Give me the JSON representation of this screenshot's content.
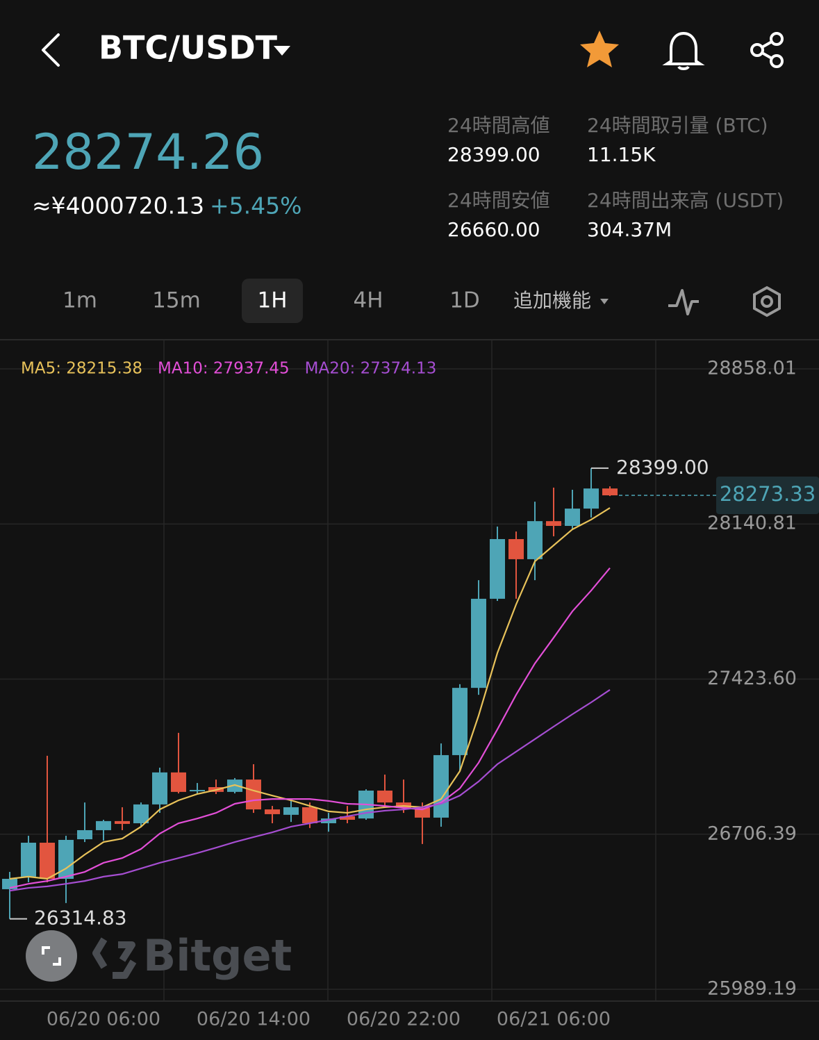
{
  "header": {
    "pair": "BTC/USDT"
  },
  "ticker": {
    "price": "28274.26",
    "cny": "≈¥4000720.13",
    "change": "+5.45%",
    "stats": [
      {
        "label": "24時間高値",
        "value": "28399.00"
      },
      {
        "label": "24時間取引量 (BTC)",
        "value": "11.15K"
      },
      {
        "label": "24時間安値",
        "value": "26660.00"
      },
      {
        "label": "24時間出来高 (USDT)",
        "value": "304.37M"
      }
    ]
  },
  "tabs": [
    "1m",
    "15m",
    "1H",
    "4H",
    "1D",
    "追加機能"
  ],
  "watermark": "Bitget",
  "chart_data": {
    "type": "candlestick",
    "categories": [
      null,
      null,
      null,
      null,
      null,
      "06/20 06:00",
      null,
      null,
      null,
      null,
      null,
      null,
      null,
      "06/20 14:00",
      null,
      null,
      null,
      null,
      null,
      null,
      null,
      "06/20 22:00",
      null,
      null,
      null,
      null,
      null,
      null,
      null,
      "06/21 06:00",
      null,
      null,
      null
    ],
    "open": [
      26452,
      26510,
      26667,
      26500,
      26683,
      26725,
      26767,
      26757,
      26844,
      26992,
      26905,
      26924,
      26902,
      26959,
      26821,
      26796,
      26831,
      26757,
      26789,
      26779,
      26908,
      26853,
      26828,
      26783,
      27072,
      27383,
      27795,
      28071,
      27978,
      28154,
      28132,
      28212,
      28305
    ],
    "high": [
      26532,
      26699,
      27069,
      26699,
      26853,
      26773,
      26831,
      26853,
      27014,
      27175,
      26943,
      26959,
      26966,
      27030,
      26837,
      26869,
      26853,
      26805,
      26837,
      26914,
      26982,
      26959,
      26853,
      27126,
      27400,
      27881,
      28129,
      28106,
      28244,
      28309,
      28299,
      28399,
      28315
    ],
    "low": [
      26314.83,
      26484,
      26484,
      26388,
      26670,
      26677,
      26725,
      26741,
      26805,
      26895,
      26895,
      26892,
      26895,
      26805,
      26757,
      26763,
      26735,
      26718,
      26757,
      26773,
      26837,
      26805,
      26661,
      26741,
      26998,
      27351,
      27785,
      27795,
      27881,
      28084,
      28116,
      28171,
      28270
    ],
    "close": [
      26500,
      26667,
      26500,
      26680,
      26725,
      26767,
      26754,
      26844,
      26992,
      26902,
      26911,
      26902,
      26959,
      26821,
      26799,
      26831,
      26757,
      26779,
      26773,
      26908,
      26853,
      26828,
      26783,
      27072,
      27383,
      27795,
      28071,
      27978,
      28154,
      28132,
      28212,
      28305,
      28273.33
    ],
    "up_color": "#4ea5b6",
    "down_color": "#e2553f",
    "series": [
      {
        "name": "MA5: 28215.38",
        "color": "#e8c25a",
        "values": [
          26500,
          26510,
          26500,
          26548,
          26612,
          26670,
          26686,
          26741,
          26821,
          26863,
          26892,
          26911,
          26934,
          26908,
          26885,
          26863,
          26837,
          26812,
          26805,
          26821,
          26831,
          26837,
          26831,
          26869,
          26998,
          27255,
          27544,
          27769,
          27968,
          28042,
          28116,
          28161,
          28215.38
        ]
      },
      {
        "name": "MA10: 27937.45",
        "color": "#e34fd8",
        "values": [
          26458,
          26477,
          26490,
          26510,
          26532,
          26574,
          26596,
          26638,
          26709,
          26757,
          26779,
          26805,
          26847,
          26863,
          26869,
          26869,
          26869,
          26860,
          26847,
          26844,
          26837,
          26828,
          26821,
          26853,
          26918,
          27037,
          27191,
          27351,
          27496,
          27615,
          27737,
          27833,
          27937.45
        ]
      },
      {
        "name": "MA20: 27374.13",
        "color": "#a64ed2",
        "values": [
          26445,
          26458,
          26465,
          26477,
          26490,
          26510,
          26522,
          26548,
          26574,
          26596,
          26619,
          26644,
          26670,
          26693,
          26715,
          26741,
          26757,
          26773,
          26789,
          26805,
          26815,
          26821,
          26831,
          26847,
          26885,
          26950,
          27030,
          27088,
          27146,
          27204,
          27261,
          27316,
          27374.13
        ]
      }
    ],
    "ylim": [
      25989.19,
      28858.01
    ],
    "yticks": [
      25989.19,
      {
        "value": 26706.39,
        "label": "26706.39"
      },
      {
        "value": 27423.6,
        "label": "27423.60"
      },
      28140.81,
      28858.01
    ],
    "max_marker": {
      "value": 28399,
      "label": "28399.00"
    },
    "min_marker": 26314.83,
    "last_price": 28273.33,
    "grid": true
  }
}
